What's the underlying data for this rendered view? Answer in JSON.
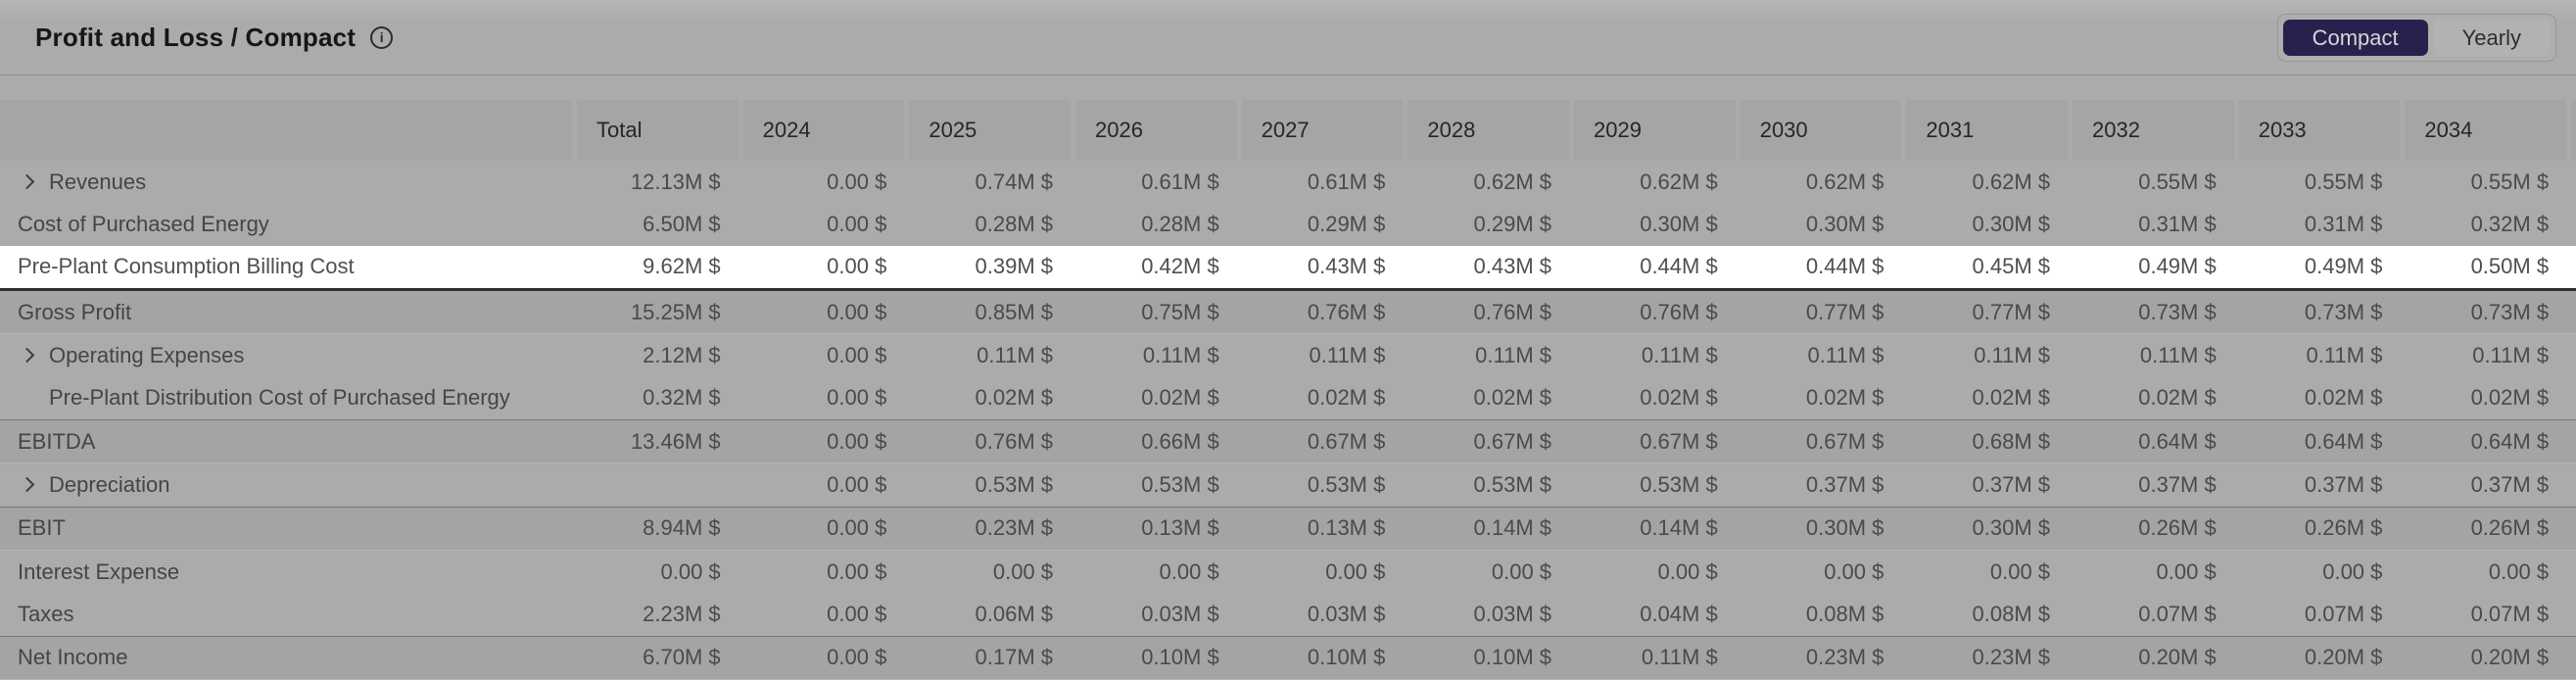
{
  "header": {
    "title": "Profit and Loss / Compact",
    "info_icon_glyph": "i",
    "view_toggle": {
      "options": [
        "Compact",
        "Yearly"
      ],
      "selected": "Compact"
    }
  },
  "table": {
    "columns": [
      "Total",
      "2024",
      "2025",
      "2026",
      "2027",
      "2028",
      "2029",
      "2030",
      "2031",
      "2032",
      "2033",
      "2034"
    ],
    "rows": [
      {
        "label": "Revenues",
        "expandable": true,
        "indent": 0,
        "style": "normal",
        "highlighted": false,
        "values": [
          "12.13M $",
          "0.00 $",
          "0.74M $",
          "0.61M $",
          "0.61M $",
          "0.62M $",
          "0.62M $",
          "0.62M $",
          "0.62M $",
          "0.55M $",
          "0.55M $",
          "0.55M $"
        ]
      },
      {
        "label": "Cost of Purchased Energy",
        "expandable": false,
        "indent": 0,
        "style": "normal",
        "highlighted": false,
        "values": [
          "6.50M $",
          "0.00 $",
          "0.28M $",
          "0.28M $",
          "0.29M $",
          "0.29M $",
          "0.30M $",
          "0.30M $",
          "0.30M $",
          "0.31M $",
          "0.31M $",
          "0.32M $"
        ]
      },
      {
        "label": "Pre-Plant Consumption Billing Cost",
        "expandable": false,
        "indent": 0,
        "style": "normal",
        "highlighted": true,
        "values": [
          "9.62M $",
          "0.00 $",
          "0.39M $",
          "0.42M $",
          "0.43M $",
          "0.43M $",
          "0.44M $",
          "0.44M $",
          "0.45M $",
          "0.49M $",
          "0.49M $",
          "0.50M $"
        ]
      },
      {
        "label": "Gross Profit",
        "expandable": false,
        "indent": 0,
        "style": "subtotal",
        "highlighted": false,
        "values": [
          "15.25M $",
          "0.00 $",
          "0.85M $",
          "0.75M $",
          "0.76M $",
          "0.76M $",
          "0.76M $",
          "0.77M $",
          "0.77M $",
          "0.73M $",
          "0.73M $",
          "0.73M $"
        ]
      },
      {
        "label": "Operating Expenses",
        "expandable": true,
        "indent": 0,
        "style": "normal",
        "highlighted": false,
        "values": [
          "2.12M $",
          "0.00 $",
          "0.11M $",
          "0.11M $",
          "0.11M $",
          "0.11M $",
          "0.11M $",
          "0.11M $",
          "0.11M $",
          "0.11M $",
          "0.11M $",
          "0.11M $"
        ]
      },
      {
        "label": "Pre-Plant Distribution Cost of Purchased Energy",
        "expandable": false,
        "indent": 1,
        "style": "normal",
        "highlighted": false,
        "values": [
          "0.32M $",
          "0.00 $",
          "0.02M $",
          "0.02M $",
          "0.02M $",
          "0.02M $",
          "0.02M $",
          "0.02M $",
          "0.02M $",
          "0.02M $",
          "0.02M $",
          "0.02M $"
        ]
      },
      {
        "label": "EBITDA",
        "expandable": false,
        "indent": 0,
        "style": "subtotal",
        "highlighted": false,
        "values": [
          "13.46M $",
          "0.00 $",
          "0.76M $",
          "0.66M $",
          "0.67M $",
          "0.67M $",
          "0.67M $",
          "0.67M $",
          "0.68M $",
          "0.64M $",
          "0.64M $",
          "0.64M $"
        ]
      },
      {
        "label": "Depreciation",
        "expandable": true,
        "indent": 0,
        "style": "normal",
        "highlighted": false,
        "values": [
          "",
          "0.00 $",
          "0.53M $",
          "0.53M $",
          "0.53M $",
          "0.53M $",
          "0.53M $",
          "0.37M $",
          "0.37M $",
          "0.37M $",
          "0.37M $",
          "0.37M $"
        ]
      },
      {
        "label": "EBIT",
        "expandable": false,
        "indent": 0,
        "style": "subtotal",
        "highlighted": false,
        "values": [
          "8.94M $",
          "0.00 $",
          "0.23M $",
          "0.13M $",
          "0.13M $",
          "0.14M $",
          "0.14M $",
          "0.30M $",
          "0.30M $",
          "0.26M $",
          "0.26M $",
          "0.26M $"
        ]
      },
      {
        "label": "Interest Expense",
        "expandable": false,
        "indent": 0,
        "style": "normal",
        "highlighted": false,
        "values": [
          "0.00 $",
          "0.00 $",
          "0.00 $",
          "0.00 $",
          "0.00 $",
          "0.00 $",
          "0.00 $",
          "0.00 $",
          "0.00 $",
          "0.00 $",
          "0.00 $",
          "0.00 $"
        ]
      },
      {
        "label": "Taxes",
        "expandable": false,
        "indent": 0,
        "style": "normal",
        "highlighted": false,
        "values": [
          "2.23M $",
          "0.00 $",
          "0.06M $",
          "0.03M $",
          "0.03M $",
          "0.03M $",
          "0.04M $",
          "0.08M $",
          "0.08M $",
          "0.07M $",
          "0.07M $",
          "0.07M $"
        ]
      },
      {
        "label": "Net Income",
        "expandable": false,
        "indent": 0,
        "style": "subtotal",
        "highlighted": false,
        "values": [
          "6.70M $",
          "0.00 $",
          "0.17M $",
          "0.10M $",
          "0.10M $",
          "0.10M $",
          "0.11M $",
          "0.23M $",
          "0.23M $",
          "0.20M $",
          "0.20M $",
          "0.20M $"
        ]
      }
    ]
  },
  "colors": {
    "page_background": "#ababab",
    "highlight_row_background": "#ffffff",
    "subtotal_row_background": "#a4a4a4",
    "header_cell_background": "#a5a5a5",
    "selected_toggle_background": "#29214d",
    "selected_toggle_text": "#d6d6d6"
  }
}
